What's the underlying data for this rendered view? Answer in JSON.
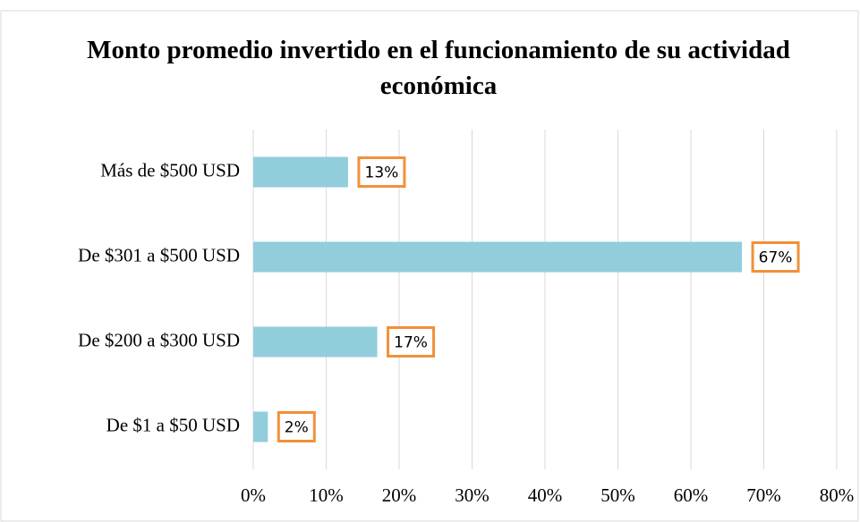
{
  "chart_data": {
    "type": "bar",
    "orientation": "horizontal",
    "title": "Monto promedio invertido en el funcionamiento de su actividad económica",
    "categories": [
      "Más de $500 USD",
      "De $301 a $500 USD",
      "De $200 a $300 USD",
      "De $1 a $50 USD"
    ],
    "values": [
      13,
      67,
      17,
      2
    ],
    "value_labels": [
      "13%",
      "67%",
      "17%",
      "2%"
    ],
    "color": "#92cddc",
    "label_border_color": "#f0913a",
    "xlim": [
      0,
      80
    ],
    "xticks": [
      {
        "value": 0,
        "label": "0%"
      },
      {
        "value": 10,
        "label": "10%"
      },
      {
        "value": 20,
        "label": "20%"
      },
      {
        "value": 30,
        "label": "30%"
      },
      {
        "value": 40,
        "label": "40%"
      },
      {
        "value": 50,
        "label": "50%"
      },
      {
        "value": 60,
        "label": "60%"
      },
      {
        "value": 70,
        "label": "70%"
      },
      {
        "value": 80,
        "label": "80%"
      }
    ],
    "grid": true
  }
}
